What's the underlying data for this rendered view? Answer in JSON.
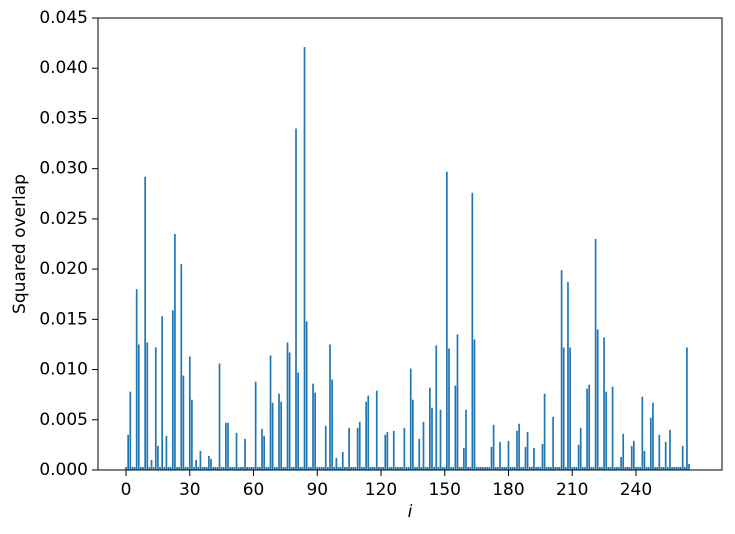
{
  "chart_data": {
    "type": "bar",
    "x": [
      0,
      1,
      2,
      3,
      4,
      5,
      6,
      7,
      8,
      9,
      10,
      11,
      12,
      13,
      14,
      15,
      16,
      17,
      18,
      19,
      20,
      21,
      22,
      23,
      24,
      25,
      26,
      27,
      28,
      29,
      30,
      31,
      32,
      33,
      34,
      35,
      36,
      37,
      38,
      39,
      40,
      41,
      42,
      43,
      44,
      45,
      46,
      47,
      48,
      49,
      50,
      51,
      52,
      53,
      54,
      55,
      56,
      57,
      58,
      59,
      60,
      61,
      62,
      63,
      64,
      65,
      66,
      67,
      68,
      69,
      70,
      71,
      72,
      73,
      74,
      75,
      76,
      77,
      78,
      79,
      80,
      81,
      82,
      83,
      84,
      85,
      86,
      87,
      88,
      89,
      90,
      91,
      92,
      93,
      94,
      95,
      96,
      97,
      98,
      99,
      100,
      101,
      102,
      103,
      104,
      105,
      106,
      107,
      108,
      109,
      110,
      111,
      112,
      113,
      114,
      115,
      116,
      117,
      118,
      119,
      120,
      121,
      122,
      123,
      124,
      125,
      126,
      127,
      128,
      129,
      130,
      131,
      132,
      133,
      134,
      135,
      136,
      137,
      138,
      139,
      140,
      141,
      142,
      143,
      144,
      145,
      146,
      147,
      148,
      149,
      150,
      151,
      152,
      153,
      154,
      155,
      156,
      157,
      158,
      159,
      160,
      161,
      162,
      163,
      164,
      165,
      166,
      167,
      168,
      169,
      170,
      171,
      172,
      173,
      174,
      175,
      176,
      177,
      178,
      179,
      180,
      181,
      182,
      183,
      184,
      185,
      186,
      187,
      188,
      189,
      190,
      191,
      192,
      193,
      194,
      195,
      196,
      197,
      198,
      199,
      200,
      201,
      202,
      203,
      204,
      205,
      206,
      207,
      208,
      209,
      210,
      211,
      212,
      213,
      214,
      215,
      216,
      217,
      218,
      219,
      220,
      221,
      222,
      223,
      224,
      225,
      226,
      227,
      228,
      229,
      230,
      231,
      232,
      233,
      234,
      235,
      236,
      237,
      238,
      239,
      240,
      241,
      242,
      243,
      244,
      245,
      246,
      247,
      248,
      249,
      250,
      251,
      252,
      253,
      254,
      255,
      256,
      257,
      258,
      259,
      260,
      261,
      262,
      263,
      264,
      265
    ],
    "values": [
      0.0003,
      0.0035,
      0.0078,
      0.0003,
      0.0003,
      0.018,
      0.0125,
      0.0003,
      0.0003,
      0.0292,
      0.0127,
      0.0003,
      0.001,
      0.0003,
      0.0122,
      0.0024,
      0.0003,
      0.0153,
      0.0003,
      0.0034,
      0.0003,
      0.0003,
      0.0159,
      0.0235,
      0.0003,
      0.0003,
      0.0205,
      0.0094,
      0.0003,
      0.0003,
      0.0113,
      0.007,
      0.0003,
      0.001,
      0.0003,
      0.0019,
      0.0003,
      0.0003,
      0.0003,
      0.0014,
      0.0011,
      0.0003,
      0.0003,
      0.0003,
      0.0106,
      0.0003,
      0.0003,
      0.0047,
      0.0047,
      0.0003,
      0.0003,
      0.0003,
      0.0037,
      0.0003,
      0.0003,
      0.0003,
      0.0031,
      0.0003,
      0.0003,
      0.0003,
      0.0003,
      0.0088,
      0.0003,
      0.0003,
      0.0041,
      0.0034,
      0.0003,
      0.0003,
      0.0114,
      0.0067,
      0.0003,
      0.0003,
      0.0076,
      0.0068,
      0.0003,
      0.0003,
      0.0127,
      0.0117,
      0.0003,
      0.0003,
      0.034,
      0.0097,
      0.0003,
      0.0003,
      0.0421,
      0.0148,
      0.0003,
      0.0003,
      0.0086,
      0.0077,
      0.0003,
      0.0003,
      0.0003,
      0.0003,
      0.0044,
      0.0003,
      0.0125,
      0.009,
      0.0003,
      0.0012,
      0.0003,
      0.0003,
      0.0018,
      0.0003,
      0.0003,
      0.0042,
      0.0003,
      0.0003,
      0.0003,
      0.0042,
      0.0048,
      0.0003,
      0.0003,
      0.0068,
      0.0074,
      0.0003,
      0.0003,
      0.0003,
      0.0079,
      0.0003,
      0.0003,
      0.0003,
      0.0035,
      0.0038,
      0.0003,
      0.0003,
      0.0039,
      0.0003,
      0.0003,
      0.0003,
      0.0003,
      0.0042,
      0.0003,
      0.0003,
      0.0101,
      0.007,
      0.0003,
      0.0003,
      0.0031,
      0.0003,
      0.0048,
      0.0003,
      0.0003,
      0.0082,
      0.0062,
      0.0003,
      0.0124,
      0.0003,
      0.006,
      0.0003,
      0.0003,
      0.0297,
      0.0121,
      0.0003,
      0.0003,
      0.0084,
      0.0135,
      0.0003,
      0.0003,
      0.0022,
      0.006,
      0.0003,
      0.0003,
      0.0276,
      0.013,
      0.0003,
      0.0003,
      0.0003,
      0.0003,
      0.0003,
      0.0003,
      0.0003,
      0.0023,
      0.0045,
      0.0003,
      0.0003,
      0.0028,
      0.0003,
      0.0003,
      0.0003,
      0.0029,
      0.0003,
      0.0003,
      0.0003,
      0.0039,
      0.0046,
      0.0003,
      0.0003,
      0.0023,
      0.0038,
      0.0003,
      0.0003,
      0.0022,
      0.0003,
      0.0003,
      0.0003,
      0.0026,
      0.0076,
      0.0003,
      0.0003,
      0.0003,
      0.0053,
      0.0003,
      0.0003,
      0.0003,
      0.0199,
      0.0122,
      0.0003,
      0.0187,
      0.0122,
      0.0003,
      0.0003,
      0.0003,
      0.0025,
      0.0042,
      0.0003,
      0.0003,
      0.0081,
      0.0085,
      0.0003,
      0.0003,
      0.023,
      0.014,
      0.0003,
      0.0003,
      0.0132,
      0.0078,
      0.0003,
      0.0003,
      0.0083,
      0.0003,
      0.0003,
      0.0003,
      0.0013,
      0.0036,
      0.0003,
      0.0003,
      0.0003,
      0.0024,
      0.0029,
      0.0003,
      0.0003,
      0.0003,
      0.0073,
      0.0019,
      0.0003,
      0.0003,
      0.0052,
      0.0067,
      0.0003,
      0.0003,
      0.0035,
      0.0003,
      0.0003,
      0.0028,
      0.0003,
      0.004,
      0.0003,
      0.0003,
      0.0003,
      0.0003,
      0.0003,
      0.0024,
      0.0003,
      0.0122,
      0.0006
    ],
    "color": "#1f77b4",
    "xlabel": "i",
    "ylabel": "Squared overlap",
    "xlim": [
      -13.2,
      280.5
    ],
    "xticks": [
      0,
      30,
      60,
      90,
      120,
      150,
      180,
      210,
      240
    ],
    "ylim": [
      0,
      0.045
    ],
    "yticks": [
      {
        "value": 0,
        "label": "0.000"
      },
      {
        "value": 0.005,
        "label": "0.005"
      },
      {
        "value": 0.01,
        "label": "0.010"
      },
      {
        "value": 0.015,
        "label": "0.015"
      },
      {
        "value": 0.02,
        "label": "0.020"
      },
      {
        "value": 0.025,
        "label": "0.025"
      },
      {
        "value": 0.03,
        "label": "0.030"
      },
      {
        "value": 0.035,
        "label": "0.035"
      },
      {
        "value": 0.04,
        "label": "0.040"
      },
      {
        "value": 0.045,
        "label": "0.045"
      }
    ],
    "grid": false
  }
}
